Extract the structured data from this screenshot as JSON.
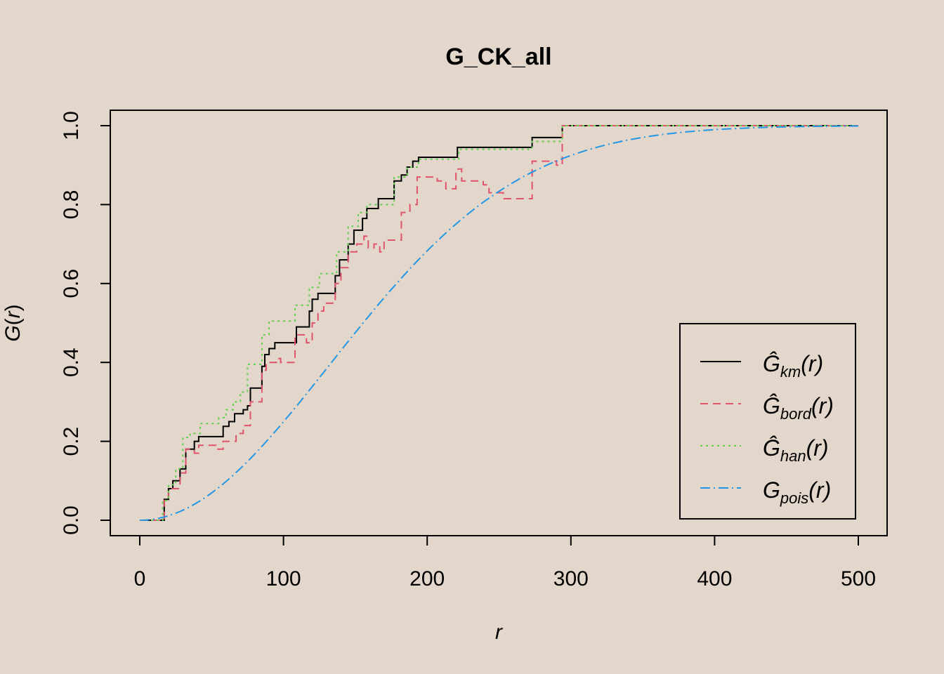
{
  "chart_data": {
    "type": "line",
    "title": "G_CK_all",
    "xlabel": "r",
    "ylabel_main": "G",
    "ylabel_arg": "r",
    "xlim": [
      0,
      500
    ],
    "ylim": [
      0,
      1
    ],
    "x_ticks": [
      "0",
      "100",
      "200",
      "300",
      "400",
      "500"
    ],
    "y_ticks": [
      "0.0",
      "0.2",
      "0.4",
      "0.6",
      "0.8",
      "1.0"
    ],
    "grid": false,
    "legend_position": "bottom-right",
    "series": [
      {
        "name": "km",
        "legend_main": "Ĝ",
        "legend_sub": "km",
        "legend_arg": "(r)",
        "color": "#000000",
        "dash": "",
        "step": true,
        "points": [
          [
            0,
            0
          ],
          [
            17,
            0
          ],
          [
            17,
            0.053
          ],
          [
            20,
            0.053
          ],
          [
            20,
            0.08
          ],
          [
            23,
            0.08
          ],
          [
            23,
            0.1
          ],
          [
            28,
            0.1
          ],
          [
            28,
            0.13
          ],
          [
            32,
            0.13
          ],
          [
            32,
            0.18
          ],
          [
            38,
            0.18
          ],
          [
            38,
            0.2
          ],
          [
            41,
            0.2
          ],
          [
            41,
            0.212
          ],
          [
            58,
            0.212
          ],
          [
            58,
            0.238
          ],
          [
            62,
            0.238
          ],
          [
            62,
            0.25
          ],
          [
            66,
            0.25
          ],
          [
            66,
            0.27
          ],
          [
            72,
            0.27
          ],
          [
            72,
            0.28
          ],
          [
            75,
            0.28
          ],
          [
            75,
            0.29
          ],
          [
            77,
            0.29
          ],
          [
            77,
            0.335
          ],
          [
            85,
            0.335
          ],
          [
            85,
            0.39
          ],
          [
            87,
            0.39
          ],
          [
            87,
            0.42
          ],
          [
            90,
            0.42
          ],
          [
            90,
            0.435
          ],
          [
            94,
            0.435
          ],
          [
            94,
            0.45
          ],
          [
            109,
            0.45
          ],
          [
            109,
            0.49
          ],
          [
            118,
            0.49
          ],
          [
            118,
            0.53
          ],
          [
            120,
            0.53
          ],
          [
            120,
            0.56
          ],
          [
            124,
            0.56
          ],
          [
            124,
            0.575
          ],
          [
            136,
            0.575
          ],
          [
            136,
            0.62
          ],
          [
            139,
            0.62
          ],
          [
            139,
            0.66
          ],
          [
            145,
            0.66
          ],
          [
            145,
            0.7
          ],
          [
            149,
            0.7
          ],
          [
            149,
            0.735
          ],
          [
            155,
            0.735
          ],
          [
            155,
            0.765
          ],
          [
            158,
            0.765
          ],
          [
            158,
            0.79
          ],
          [
            166,
            0.79
          ],
          [
            166,
            0.815
          ],
          [
            177,
            0.815
          ],
          [
            177,
            0.86
          ],
          [
            182,
            0.86
          ],
          [
            182,
            0.875
          ],
          [
            186,
            0.875
          ],
          [
            186,
            0.895
          ],
          [
            190,
            0.895
          ],
          [
            190,
            0.91
          ],
          [
            194,
            0.91
          ],
          [
            194,
            0.92
          ],
          [
            221,
            0.92
          ],
          [
            221,
            0.945
          ],
          [
            273,
            0.945
          ],
          [
            273,
            0.97
          ],
          [
            294,
            0.97
          ],
          [
            294,
            1.0
          ],
          [
            500,
            1.0
          ]
        ]
      },
      {
        "name": "bord",
        "legend_main": "Ĝ",
        "legend_sub": "bord",
        "legend_arg": "(r)",
        "color": "#df536b",
        "dash": "11,7",
        "step": true,
        "points": [
          [
            0,
            0
          ],
          [
            17,
            0
          ],
          [
            17,
            0.05
          ],
          [
            20,
            0.05
          ],
          [
            20,
            0.08
          ],
          [
            28,
            0.08
          ],
          [
            28,
            0.12
          ],
          [
            32,
            0.12
          ],
          [
            32,
            0.18
          ],
          [
            38,
            0.18
          ],
          [
            38,
            0.17
          ],
          [
            41,
            0.17
          ],
          [
            41,
            0.19
          ],
          [
            53,
            0.19
          ],
          [
            53,
            0.18
          ],
          [
            58,
            0.18
          ],
          [
            58,
            0.2
          ],
          [
            67,
            0.2
          ],
          [
            67,
            0.22
          ],
          [
            72,
            0.22
          ],
          [
            72,
            0.24
          ],
          [
            77,
            0.24
          ],
          [
            77,
            0.3
          ],
          [
            85,
            0.3
          ],
          [
            85,
            0.38
          ],
          [
            88,
            0.38
          ],
          [
            88,
            0.4
          ],
          [
            95,
            0.4
          ],
          [
            95,
            0.41
          ],
          [
            98,
            0.41
          ],
          [
            98,
            0.4
          ],
          [
            108,
            0.4
          ],
          [
            108,
            0.47
          ],
          [
            116,
            0.47
          ],
          [
            116,
            0.45
          ],
          [
            120,
            0.45
          ],
          [
            120,
            0.5
          ],
          [
            124,
            0.5
          ],
          [
            124,
            0.53
          ],
          [
            128,
            0.53
          ],
          [
            128,
            0.55
          ],
          [
            136,
            0.55
          ],
          [
            136,
            0.6
          ],
          [
            140,
            0.6
          ],
          [
            140,
            0.64
          ],
          [
            145,
            0.64
          ],
          [
            145,
            0.68
          ],
          [
            151,
            0.68
          ],
          [
            151,
            0.7
          ],
          [
            156,
            0.7
          ],
          [
            156,
            0.72
          ],
          [
            159,
            0.72
          ],
          [
            159,
            0.69
          ],
          [
            163,
            0.69
          ],
          [
            163,
            0.7
          ],
          [
            167,
            0.7
          ],
          [
            167,
            0.68
          ],
          [
            170,
            0.68
          ],
          [
            170,
            0.71
          ],
          [
            182,
            0.71
          ],
          [
            182,
            0.78
          ],
          [
            188,
            0.78
          ],
          [
            188,
            0.8
          ],
          [
            193,
            0.8
          ],
          [
            193,
            0.87
          ],
          [
            207,
            0.87
          ],
          [
            207,
            0.86
          ],
          [
            213,
            0.86
          ],
          [
            213,
            0.84
          ],
          [
            220,
            0.84
          ],
          [
            220,
            0.89
          ],
          [
            224,
            0.89
          ],
          [
            224,
            0.86
          ],
          [
            239,
            0.86
          ],
          [
            239,
            0.85
          ],
          [
            243,
            0.85
          ],
          [
            243,
            0.83
          ],
          [
            253,
            0.83
          ],
          [
            253,
            0.815
          ],
          [
            273,
            0.815
          ],
          [
            273,
            0.91
          ],
          [
            290,
            0.91
          ],
          [
            290,
            0.9
          ],
          [
            294,
            0.9
          ],
          [
            294,
            1.0
          ],
          [
            500,
            1.0
          ]
        ]
      },
      {
        "name": "han",
        "legend_main": "Ĝ",
        "legend_sub": "han",
        "legend_arg": "(r)",
        "color": "#61d04f",
        "dash": "3,5",
        "step": true,
        "points": [
          [
            0,
            0
          ],
          [
            16,
            0
          ],
          [
            16,
            0.05
          ],
          [
            20,
            0.05
          ],
          [
            20,
            0.09
          ],
          [
            25,
            0.09
          ],
          [
            25,
            0.13
          ],
          [
            30,
            0.13
          ],
          [
            30,
            0.21
          ],
          [
            35,
            0.21
          ],
          [
            35,
            0.22
          ],
          [
            42,
            0.22
          ],
          [
            42,
            0.245
          ],
          [
            55,
            0.245
          ],
          [
            55,
            0.26
          ],
          [
            60,
            0.26
          ],
          [
            60,
            0.28
          ],
          [
            65,
            0.28
          ],
          [
            65,
            0.3
          ],
          [
            70,
            0.3
          ],
          [
            70,
            0.325
          ],
          [
            75,
            0.325
          ],
          [
            75,
            0.395
          ],
          [
            85,
            0.395
          ],
          [
            85,
            0.47
          ],
          [
            90,
            0.47
          ],
          [
            90,
            0.505
          ],
          [
            108,
            0.505
          ],
          [
            108,
            0.545
          ],
          [
            118,
            0.545
          ],
          [
            118,
            0.59
          ],
          [
            125,
            0.59
          ],
          [
            125,
            0.625
          ],
          [
            137,
            0.625
          ],
          [
            137,
            0.68
          ],
          [
            145,
            0.68
          ],
          [
            145,
            0.745
          ],
          [
            152,
            0.745
          ],
          [
            152,
            0.78
          ],
          [
            158,
            0.78
          ],
          [
            158,
            0.8
          ],
          [
            177,
            0.8
          ],
          [
            177,
            0.87
          ],
          [
            186,
            0.87
          ],
          [
            186,
            0.895
          ],
          [
            194,
            0.895
          ],
          [
            194,
            0.915
          ],
          [
            222,
            0.915
          ],
          [
            222,
            0.94
          ],
          [
            273,
            0.94
          ],
          [
            273,
            0.96
          ],
          [
            294,
            0.96
          ],
          [
            294,
            1.0
          ],
          [
            500,
            1.0
          ]
        ]
      },
      {
        "name": "pois",
        "legend_main": "G",
        "legend_sub": "pois",
        "legend_arg": "(r)",
        "color": "#2297e6",
        "dash": "14,5,2,5",
        "step": false,
        "function": "1 - exp(-0.0000287 * r^2)"
      }
    ]
  }
}
